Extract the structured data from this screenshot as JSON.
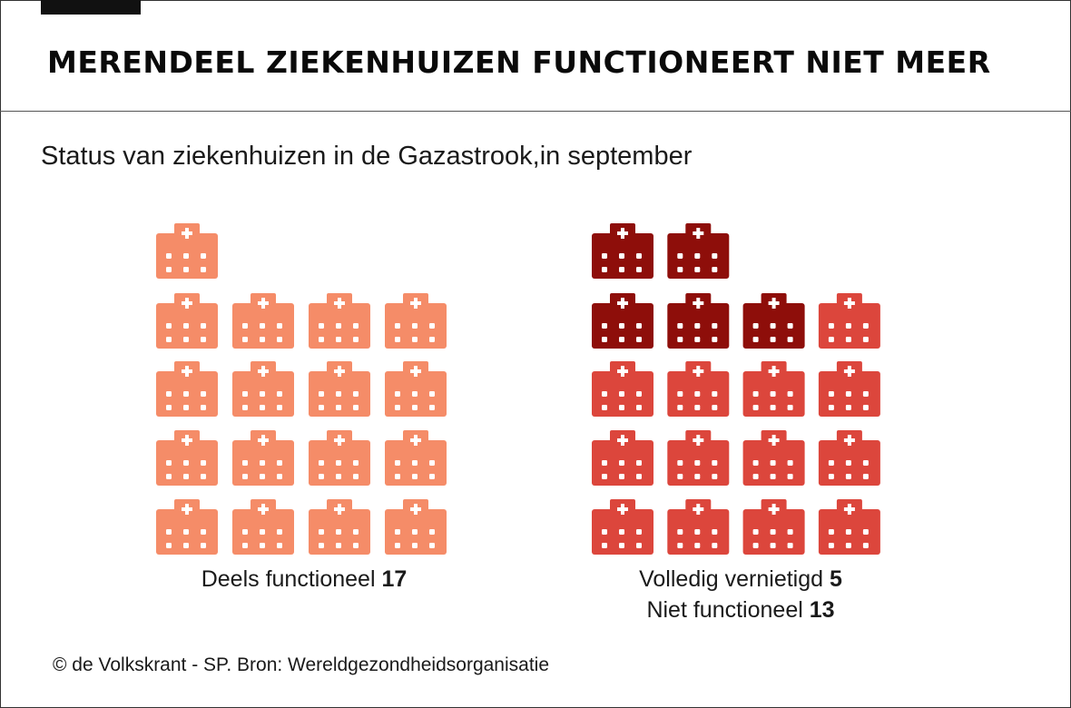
{
  "title": "MERENDEEL ZIEKENHUIZEN FUNCTIONEERT NIET MEER",
  "subtitle": "Status van ziekenhuizen in de Gazastrook,in september",
  "footer": "© de Volkskrant - SP. Bron: Wereldgezondheidsorganisatie",
  "chart_data": {
    "type": "pictogram",
    "title": "MERENDEEL ZIEKENHUIZEN FUNCTIONEERT NIET MEER",
    "subtitle": "Status van ziekenhuizen in de Gazastrook,in september",
    "unit": "1 icon = 1 hospital",
    "groups": [
      {
        "id": "left",
        "categories": [
          {
            "label": "Deels functioneel",
            "value": 17,
            "color": "#f58c68"
          }
        ]
      },
      {
        "id": "right",
        "categories": [
          {
            "label": "Volledig vernietigd",
            "value": 5,
            "color": "#8e0e0a"
          },
          {
            "label": "Niet functioneel",
            "value": 13,
            "color": "#dc463c"
          }
        ]
      }
    ]
  }
}
